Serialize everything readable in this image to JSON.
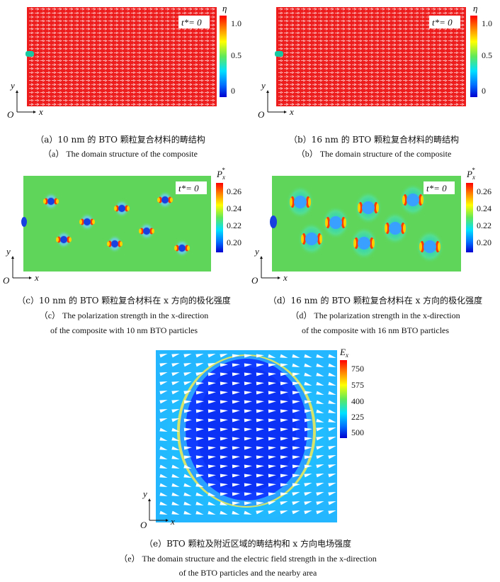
{
  "colors": {
    "jet": [
      "#00007f",
      "#0000ff",
      "#007fff",
      "#00ffff",
      "#7fff7f",
      "#ffff00",
      "#ff7f00",
      "#ff0000",
      "#7f0000"
    ],
    "domain_red": "#ee1d1d",
    "background_green": "#5fd65a",
    "arrow": "#ffffff",
    "text": "#111111"
  },
  "panels": {
    "a": {
      "time_label": "t*= 0",
      "bar_title": "η",
      "bar_ticks": [
        "1.0",
        "0.5",
        "0"
      ],
      "axis_y": "y",
      "axis_x": "x",
      "origin": "O",
      "caption_zh": "（a）10 nm 的 BTO 颗粒复合材料的畴结构",
      "caption_en": "（a） The domain structure of the composite"
    },
    "b": {
      "time_label": "t*= 0",
      "bar_title": "η",
      "bar_ticks": [
        "1.0",
        "0.5",
        "0"
      ],
      "axis_y": "y",
      "axis_x": "x",
      "origin": "O",
      "caption_zh": "（b）16 nm 的 BTO 颗粒复合材料的畴结构",
      "caption_en": "（b） The domain structure of the composite"
    },
    "c": {
      "time_label": "t*= 0",
      "bar_title": "P*x",
      "bar_ticks": [
        "0.26",
        "0.24",
        "0.22",
        "0.20"
      ],
      "axis_y": "y",
      "axis_x": "x",
      "origin": "O",
      "caption_zh": "（c）10 nm 的 BTO 颗粒复合材料在 x 方向的极化强度",
      "caption_en_1": "（c） The polarization strength in the x-direction",
      "caption_en_2": "of the composite with 10 nm BTO particles"
    },
    "d": {
      "time_label": "t*= 0",
      "bar_title": "P*x",
      "bar_ticks": [
        "0.26",
        "0.24",
        "0.22",
        "0.20"
      ],
      "axis_y": "y",
      "axis_x": "x",
      "origin": "O",
      "caption_zh": "（d）16 nm 的 BTO 颗粒复合材料在 x 方向的极化强度",
      "caption_en_1": "（d） The polarization strength in the x-direction",
      "caption_en_2": "of the composite with 16 nm BTO particles"
    },
    "e": {
      "bar_title": "Ex",
      "bar_ticks": [
        "750",
        "575",
        "400",
        "225",
        "500"
      ],
      "axis_y": "y",
      "axis_x": "x",
      "origin": "O",
      "caption_zh": "（e）BTO 颗粒及附近区域的畴结构和 x 方向电场强度",
      "caption_en_1": "（e） The domain structure and the electric field strength in the x-direction",
      "caption_en_2": "of the BTO particles and the nearby area"
    }
  }
}
